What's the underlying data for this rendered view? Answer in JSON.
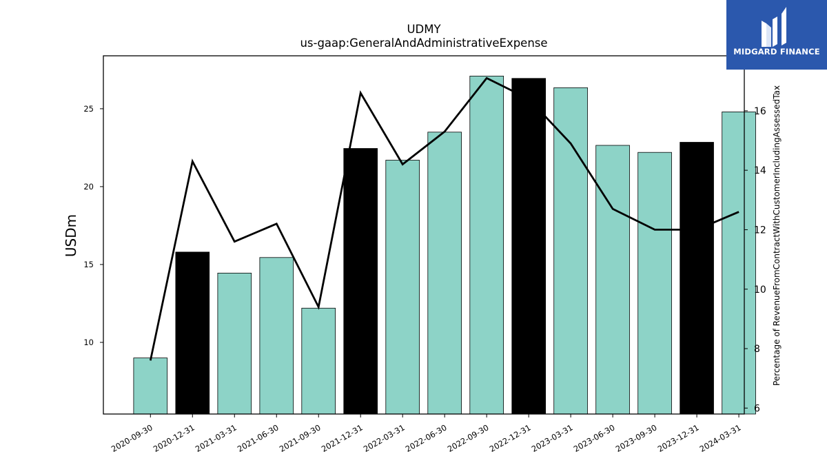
{
  "chart_data": {
    "type": "bar",
    "title": "UDMY",
    "subtitle": "us-gaap:GeneralAndAdministrativeExpense",
    "ylabel": "USDm",
    "y2label": "Percentage of RevenueFromContractWithCustomerIncludingAssessedTax",
    "categories": [
      "2020-09-30",
      "2020-12-31",
      "2021-03-31",
      "2021-06-30",
      "2021-09-30",
      "2021-12-31",
      "2022-03-31",
      "2022-06-30",
      "2022-09-30",
      "2022-12-31",
      "2023-03-31",
      "2023-06-30",
      "2023-09-30",
      "2023-12-31",
      "2024-03-31"
    ],
    "series": [
      {
        "kind": "bar",
        "axis": "left",
        "values": [
          9.0,
          15.8,
          14.45,
          15.45,
          12.2,
          22.45,
          21.7,
          23.5,
          27.1,
          26.95,
          26.35,
          22.65,
          22.2,
          22.85,
          24.8
        ],
        "colors": [
          "#8dd3c7",
          "#000000",
          "#8dd3c7",
          "#8dd3c7",
          "#8dd3c7",
          "#000000",
          "#8dd3c7",
          "#8dd3c7",
          "#8dd3c7",
          "#000000",
          "#8dd3c7",
          "#8dd3c7",
          "#8dd3c7",
          "#000000",
          "#8dd3c7"
        ]
      },
      {
        "kind": "line",
        "axis": "right",
        "color": "#000000",
        "values": [
          7.6,
          14.3,
          11.6,
          12.2,
          9.4,
          16.6,
          14.2,
          15.3,
          17.1,
          16.4,
          14.9,
          12.7,
          12.0,
          12.0,
          12.6
        ]
      }
    ],
    "ylim": [
      5.4,
      28.4
    ],
    "y2lim": [
      5.8,
      17.85
    ],
    "yticks": [
      10,
      15,
      20,
      25
    ],
    "y2ticks": [
      6,
      8,
      10,
      12,
      14,
      16
    ],
    "grid": false,
    "legend": "none"
  },
  "branding": {
    "logo_text": "MIDGARD FINANCE",
    "logo_color": "#2b58ad"
  }
}
